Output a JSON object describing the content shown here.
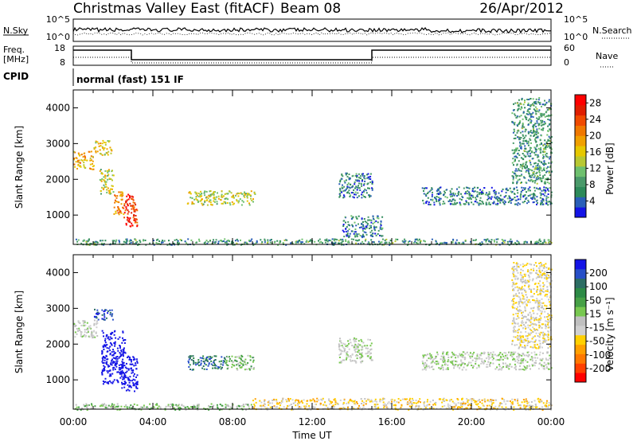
{
  "header": {
    "station": "Christmas Valley East (fitACF)",
    "beam": "Beam 08",
    "date": "26/Apr/2012"
  },
  "status_panels": {
    "nsky_label": "N.Sky",
    "nsky_ticks": [
      "10^5",
      "10^0"
    ],
    "nsearch_label": "N.Search",
    "nsearch_ticks": [
      "10^5",
      "10^0"
    ],
    "freq_label_1": "Freq.",
    "freq_label_2": "[MHz]",
    "freq_ticks": [
      "18",
      "8"
    ],
    "nave_label": "Nave",
    "nave_ticks": [
      "60",
      "0"
    ],
    "cpid_label": "CPID",
    "cpid_text": "normal (fast) 151 IF"
  },
  "axes": {
    "xlabel": "Time UT",
    "x_ticks": [
      "00:00",
      "04:00",
      "08:00",
      "12:00",
      "16:00",
      "20:00",
      "00:00"
    ],
    "ylabel": "Slant Range [km]",
    "y_ticks": [
      "1000",
      "2000",
      "3000",
      "4000"
    ]
  },
  "power_colorbar": {
    "label": "Power [dB]",
    "ticks": [
      "4",
      "8",
      "12",
      "16",
      "20",
      "24",
      "28"
    ],
    "colors": [
      "#1414e6",
      "#2a5fb8",
      "#2d8a5a",
      "#4a9a6a",
      "#6ec06e",
      "#b8c832",
      "#e6c800",
      "#f0a000",
      "#f07800",
      "#f04a00",
      "#e01e00",
      "#ff0000"
    ]
  },
  "velocity_colorbar": {
    "label": "Velocity [m s⁻¹]",
    "ticks": [
      "200",
      "100",
      "50",
      "15",
      "-15",
      "-50",
      "-100",
      "-200"
    ],
    "colors": [
      "#1414e6",
      "#2850c8",
      "#2d6e64",
      "#2d8a46",
      "#46a046",
      "#78c850",
      "#c0c0c0",
      "#d0d0d0",
      "#ffd000",
      "#ffa000",
      "#ff7800",
      "#ff4000",
      "#ff0000"
    ]
  },
  "chart_data": [
    {
      "type": "heatmap",
      "title": "Power [dB]",
      "xlabel": "Time UT",
      "ylabel": "Slant Range [km]",
      "xlim": [
        0,
        24
      ],
      "ylim": [
        180,
        4500
      ],
      "zlim": [
        0,
        30
      ],
      "regions": [
        {
          "t": [
            0.0,
            1.0
          ],
          "r": [
            2300,
            2800
          ],
          "v": 18
        },
        {
          "t": [
            1.0,
            1.9
          ],
          "r": [
            2700,
            3100
          ],
          "v": 16
        },
        {
          "t": [
            1.3,
            2.0
          ],
          "r": [
            1600,
            2300
          ],
          "v": 14
        },
        {
          "t": [
            2.0,
            2.5
          ],
          "r": [
            1000,
            1700
          ],
          "v": 20
        },
        {
          "t": [
            2.5,
            3.2
          ],
          "r": [
            700,
            1600
          ],
          "v": 26
        },
        {
          "t": [
            5.7,
            9.1
          ],
          "r": [
            1300,
            1700
          ],
          "v": 14
        },
        {
          "t": [
            0.0,
            24.0
          ],
          "r": [
            180,
            350
          ],
          "v": 8
        },
        {
          "t": [
            13.3,
            15.0
          ],
          "r": [
            1500,
            2200
          ],
          "v": 6
        },
        {
          "t": [
            13.5,
            15.5
          ],
          "r": [
            400,
            1000
          ],
          "v": 6
        },
        {
          "t": [
            17.5,
            24.0
          ],
          "r": [
            1300,
            1800
          ],
          "v": 6
        },
        {
          "t": [
            22.0,
            24.0
          ],
          "r": [
            1900,
            4300
          ],
          "v": 8
        }
      ]
    },
    {
      "type": "heatmap",
      "title": "Velocity [m s-1]",
      "xlabel": "Time UT",
      "ylabel": "Slant Range [km]",
      "xlim": [
        0,
        24
      ],
      "ylim": [
        180,
        4500
      ],
      "zlim": [
        -200,
        200
      ],
      "regions": [
        {
          "t": [
            0.0,
            1.2
          ],
          "r": [
            2200,
            2700
          ],
          "v": 0
        },
        {
          "t": [
            1.0,
            2.0
          ],
          "r": [
            2700,
            3000
          ],
          "v": 150
        },
        {
          "t": [
            1.4,
            2.6
          ],
          "r": [
            900,
            2400
          ],
          "v": 220
        },
        {
          "t": [
            2.4,
            3.2
          ],
          "r": [
            700,
            1700
          ],
          "v": 220
        },
        {
          "t": [
            5.7,
            7.6
          ],
          "r": [
            1300,
            1700
          ],
          "v": 120
        },
        {
          "t": [
            7.6,
            9.1
          ],
          "r": [
            1300,
            1700
          ],
          "v": 40
        },
        {
          "t": [
            0.0,
            9.0
          ],
          "r": [
            180,
            350
          ],
          "v": 30
        },
        {
          "t": [
            9.0,
            24.0
          ],
          "r": [
            180,
            500
          ],
          "v": -50
        },
        {
          "t": [
            13.3,
            15.0
          ],
          "r": [
            1500,
            2200
          ],
          "v": 0
        },
        {
          "t": [
            17.5,
            24.0
          ],
          "r": [
            1300,
            1800
          ],
          "v": 0
        },
        {
          "t": [
            22.0,
            24.0
          ],
          "r": [
            1900,
            4300
          ],
          "v": -30
        }
      ]
    }
  ]
}
